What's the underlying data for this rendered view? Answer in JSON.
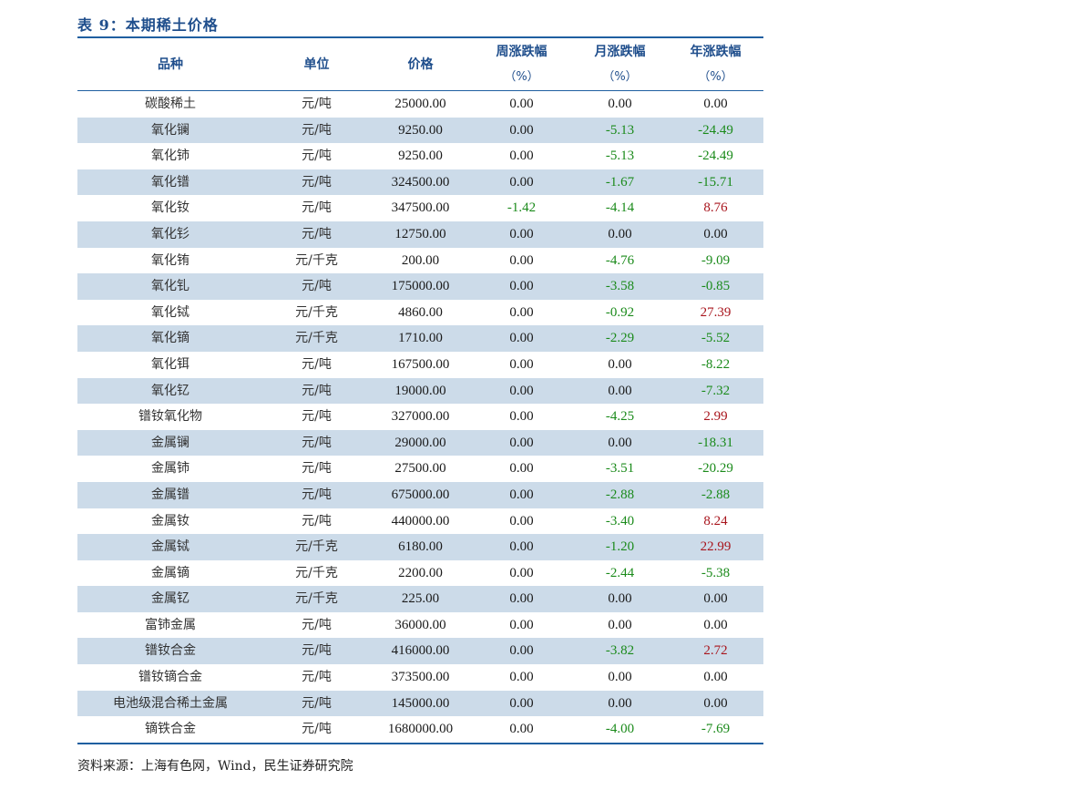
{
  "title": "表 9：本期稀土价格",
  "table": {
    "headers": [
      {
        "line1": "品种",
        "line2": ""
      },
      {
        "line1": "单位",
        "line2": ""
      },
      {
        "line1": "价格",
        "line2": ""
      },
      {
        "line1": "周涨跌幅",
        "line2": "（%）"
      },
      {
        "line1": "月涨跌幅",
        "line2": "（%）"
      },
      {
        "line1": "年涨跌幅",
        "line2": "（%）"
      }
    ],
    "rows": [
      {
        "name": "碳酸稀土",
        "unit": "元/吨",
        "price": "25000.00",
        "week": "0.00",
        "month": "0.00",
        "year": "0.00"
      },
      {
        "name": "氧化镧",
        "unit": "元/吨",
        "price": "9250.00",
        "week": "0.00",
        "month": "-5.13",
        "year": "-24.49"
      },
      {
        "name": "氧化铈",
        "unit": "元/吨",
        "price": "9250.00",
        "week": "0.00",
        "month": "-5.13",
        "year": "-24.49"
      },
      {
        "name": "氧化镨",
        "unit": "元/吨",
        "price": "324500.00",
        "week": "0.00",
        "month": "-1.67",
        "year": "-15.71"
      },
      {
        "name": "氧化钕",
        "unit": "元/吨",
        "price": "347500.00",
        "week": "-1.42",
        "month": "-4.14",
        "year": "8.76"
      },
      {
        "name": "氧化钐",
        "unit": "元/吨",
        "price": "12750.00",
        "week": "0.00",
        "month": "0.00",
        "year": "0.00"
      },
      {
        "name": "氧化铕",
        "unit": "元/千克",
        "price": "200.00",
        "week": "0.00",
        "month": "-4.76",
        "year": "-9.09"
      },
      {
        "name": "氧化钆",
        "unit": "元/吨",
        "price": "175000.00",
        "week": "0.00",
        "month": "-3.58",
        "year": "-0.85"
      },
      {
        "name": "氧化铽",
        "unit": "元/千克",
        "price": "4860.00",
        "week": "0.00",
        "month": "-0.92",
        "year": "27.39"
      },
      {
        "name": "氧化镝",
        "unit": "元/千克",
        "price": "1710.00",
        "week": "0.00",
        "month": "-2.29",
        "year": "-5.52"
      },
      {
        "name": "氧化铒",
        "unit": "元/吨",
        "price": "167500.00",
        "week": "0.00",
        "month": "0.00",
        "year": "-8.22"
      },
      {
        "name": "氧化钇",
        "unit": "元/吨",
        "price": "19000.00",
        "week": "0.00",
        "month": "0.00",
        "year": "-7.32"
      },
      {
        "name": "镨钕氧化物",
        "unit": "元/吨",
        "price": "327000.00",
        "week": "0.00",
        "month": "-4.25",
        "year": "2.99"
      },
      {
        "name": "金属镧",
        "unit": "元/吨",
        "price": "29000.00",
        "week": "0.00",
        "month": "0.00",
        "year": "-18.31"
      },
      {
        "name": "金属铈",
        "unit": "元/吨",
        "price": "27500.00",
        "week": "0.00",
        "month": "-3.51",
        "year": "-20.29"
      },
      {
        "name": "金属镨",
        "unit": "元/吨",
        "price": "675000.00",
        "week": "0.00",
        "month": "-2.88",
        "year": "-2.88"
      },
      {
        "name": "金属钕",
        "unit": "元/吨",
        "price": "440000.00",
        "week": "0.00",
        "month": "-3.40",
        "year": "8.24"
      },
      {
        "name": "金属铽",
        "unit": "元/千克",
        "price": "6180.00",
        "week": "0.00",
        "month": "-1.20",
        "year": "22.99"
      },
      {
        "name": "金属镝",
        "unit": "元/千克",
        "price": "2200.00",
        "week": "0.00",
        "month": "-2.44",
        "year": "-5.38"
      },
      {
        "name": "金属钇",
        "unit": "元/千克",
        "price": "225.00",
        "week": "0.00",
        "month": "0.00",
        "year": "0.00"
      },
      {
        "name": "富铈金属",
        "unit": "元/吨",
        "price": "36000.00",
        "week": "0.00",
        "month": "0.00",
        "year": "0.00"
      },
      {
        "name": "镨钕合金",
        "unit": "元/吨",
        "price": "416000.00",
        "week": "0.00",
        "month": "-3.82",
        "year": "2.72"
      },
      {
        "name": "镨钕镝合金",
        "unit": "元/吨",
        "price": "373500.00",
        "week": "0.00",
        "month": "0.00",
        "year": "0.00"
      },
      {
        "name": "电池级混合稀土金属",
        "unit": "元/吨",
        "price": "145000.00",
        "week": "0.00",
        "month": "0.00",
        "year": "0.00"
      },
      {
        "name": "镝铁合金",
        "unit": "元/吨",
        "price": "1680000.00",
        "week": "0.00",
        "month": "-4.00",
        "year": "-7.69"
      }
    ]
  },
  "colors": {
    "header_text": "#1f4e8c",
    "rule": "#1f5fa0",
    "stripe": "#ccdbe9",
    "positive": "#a8141c",
    "negative": "#1a8a1a"
  },
  "source": "资料来源：上海有色网，Wind，民生证券研究院"
}
